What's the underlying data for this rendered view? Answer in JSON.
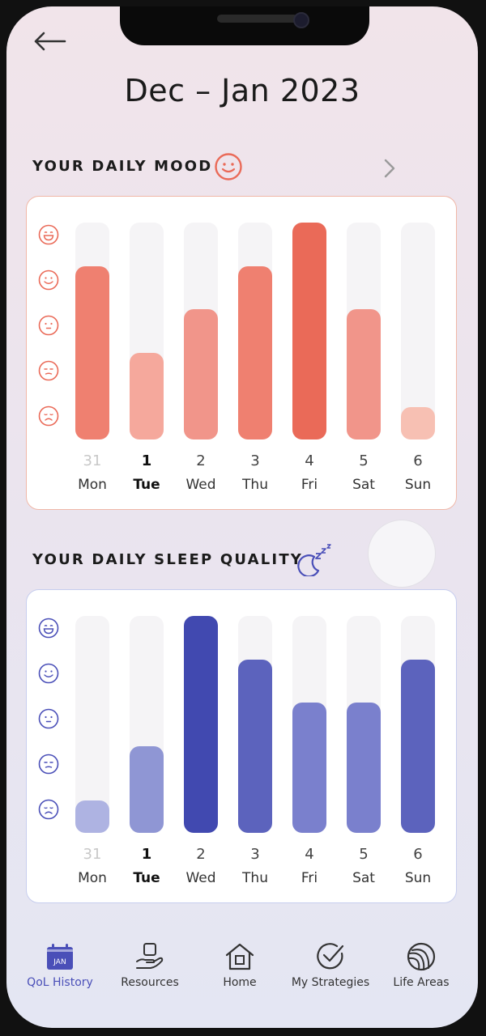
{
  "header": {
    "title": "Dec – Jan 2023"
  },
  "mood": {
    "heading": "YOUR DAILY MOOD",
    "days": [
      {
        "num": "31",
        "name": "Mon",
        "value": 4
      },
      {
        "num": "1",
        "name": "Tue",
        "value": 2
      },
      {
        "num": "2",
        "name": "Wed",
        "value": 3
      },
      {
        "num": "3",
        "name": "Thu",
        "value": 4
      },
      {
        "num": "4",
        "name": "Fri",
        "value": 5
      },
      {
        "num": "5",
        "name": "Sat",
        "value": 3
      },
      {
        "num": "6",
        "name": "Sun",
        "value": 0.75
      }
    ]
  },
  "sleep": {
    "heading": "YOUR DAILY SLEEP QUALITY",
    "days": [
      {
        "num": "31",
        "name": "Mon",
        "value": 0.75
      },
      {
        "num": "1",
        "name": "Tue",
        "value": 2
      },
      {
        "num": "2",
        "name": "Wed",
        "value": 5
      },
      {
        "num": "3",
        "name": "Thu",
        "value": 4
      },
      {
        "num": "4",
        "name": "Fri",
        "value": 3
      },
      {
        "num": "5",
        "name": "Sat",
        "value": 3
      },
      {
        "num": "6",
        "name": "Sun",
        "value": 4
      }
    ]
  },
  "scale_max": 5,
  "colors": {
    "mood_levels": [
      "#f7c0b3",
      "#f5a89c",
      "#f1958a",
      "#ef8070",
      "#ea6a58"
    ],
    "sleep_levels": [
      "#aeb3e2",
      "#8f96d4",
      "#7a80cd",
      "#5c63bd",
      "#4149b0"
    ],
    "mood_accent": "#ea6a58",
    "sleep_accent": "#4a4fb8"
  },
  "nav": [
    {
      "label": "QoL History",
      "icon": "calendar-icon",
      "badge": "JAN",
      "active": true
    },
    {
      "label": "Resources",
      "icon": "hand-box-icon",
      "active": false
    },
    {
      "label": "Home",
      "icon": "home-icon",
      "active": false
    },
    {
      "label": "My Strategies",
      "icon": "check-circle-icon",
      "active": false
    },
    {
      "label": "Life Areas",
      "icon": "life-areas-icon",
      "active": false
    }
  ]
}
